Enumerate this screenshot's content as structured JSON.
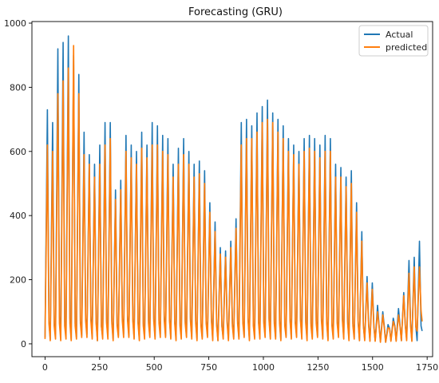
{
  "chart_data": {
    "type": "line",
    "title": "Forecasting (GRU)",
    "xlabel": "",
    "ylabel": "",
    "xlim": [
      -60,
      1775
    ],
    "ylim": [
      -40,
      1005
    ],
    "xticks": [
      0,
      250,
      500,
      750,
      1000,
      1250,
      1500,
      1750
    ],
    "yticks": [
      0,
      200,
      400,
      600,
      800,
      1000
    ],
    "grid": false,
    "legend_position": "top-right",
    "period": 24,
    "trough": 8,
    "series": [
      {
        "name": "Actual",
        "color": "#1f77b4",
        "x": [
          0,
          24,
          48,
          72,
          96,
          120,
          144,
          168,
          192,
          216,
          240,
          264,
          288,
          312,
          336,
          360,
          384,
          408,
          432,
          456,
          480,
          504,
          528,
          552,
          576,
          600,
          624,
          648,
          672,
          696,
          720,
          744,
          768,
          792,
          816,
          840,
          864,
          888,
          912,
          936,
          960,
          984,
          1008,
          1032,
          1056,
          1080,
          1104,
          1128,
          1152,
          1176,
          1200,
          1224,
          1248,
          1272,
          1296,
          1320,
          1344,
          1368,
          1392,
          1416,
          1440,
          1464,
          1488,
          1512,
          1536,
          1560,
          1584,
          1608,
          1632,
          1656,
          1680,
          1704
        ],
        "values": [
          730,
          690,
          920,
          940,
          960,
          900,
          840,
          660,
          590,
          560,
          620,
          690,
          690,
          480,
          510,
          650,
          620,
          600,
          660,
          620,
          690,
          680,
          650,
          640,
          560,
          610,
          640,
          600,
          560,
          570,
          540,
          440,
          380,
          300,
          290,
          320,
          390,
          690,
          700,
          680,
          720,
          740,
          760,
          720,
          700,
          680,
          640,
          620,
          600,
          640,
          650,
          640,
          620,
          650,
          640,
          560,
          550,
          520,
          540,
          440,
          350,
          210,
          190,
          120,
          100,
          60,
          80,
          110,
          160,
          260,
          270,
          320
        ],
        "valley_values": [
          20,
          15,
          30,
          20,
          25,
          15,
          20,
          25,
          30,
          20,
          10,
          20,
          20,
          15,
          25,
          30,
          25,
          20,
          15,
          20,
          25,
          20,
          30,
          25,
          20,
          15,
          20,
          25,
          20,
          15,
          20,
          25,
          15,
          10,
          20,
          15,
          20,
          20,
          25,
          15,
          20,
          20,
          25,
          20,
          20,
          15,
          25,
          20,
          25,
          20,
          15,
          20,
          25,
          20,
          15,
          20,
          25,
          20,
          15,
          20,
          10,
          15,
          10,
          10,
          8,
          5,
          10,
          10,
          10,
          15,
          10,
          10
        ]
      },
      {
        "name": "predicted",
        "color": "#ff7f0e",
        "x": [
          0,
          24,
          48,
          72,
          96,
          120,
          144,
          168,
          192,
          216,
          240,
          264,
          288,
          312,
          336,
          360,
          384,
          408,
          432,
          456,
          480,
          504,
          528,
          552,
          576,
          600,
          624,
          648,
          672,
          696,
          720,
          744,
          768,
          792,
          816,
          840,
          864,
          888,
          912,
          936,
          960,
          984,
          1008,
          1032,
          1056,
          1080,
          1104,
          1128,
          1152,
          1176,
          1200,
          1224,
          1248,
          1272,
          1296,
          1320,
          1344,
          1368,
          1392,
          1416,
          1440,
          1464,
          1488,
          1512,
          1536,
          1560,
          1584,
          1608,
          1632,
          1656,
          1680,
          1704
        ],
        "values": [
          620,
          600,
          780,
          820,
          860,
          930,
          780,
          590,
          560,
          520,
          560,
          620,
          640,
          450,
          480,
          600,
          580,
          560,
          610,
          580,
          620,
          620,
          600,
          590,
          520,
          560,
          590,
          560,
          520,
          530,
          500,
          410,
          350,
          280,
          270,
          300,
          360,
          620,
          640,
          640,
          660,
          690,
          700,
          690,
          660,
          640,
          600,
          590,
          560,
          600,
          610,
          600,
          580,
          600,
          600,
          520,
          520,
          490,
          500,
          410,
          320,
          190,
          170,
          100,
          90,
          50,
          70,
          90,
          150,
          220,
          240,
          240
        ],
        "valley_values": [
          15,
          10,
          15,
          10,
          15,
          10,
          15,
          20,
          20,
          15,
          10,
          15,
          15,
          10,
          20,
          20,
          20,
          15,
          10,
          15,
          20,
          15,
          20,
          20,
          15,
          10,
          15,
          20,
          15,
          10,
          15,
          20,
          10,
          10,
          15,
          10,
          15,
          15,
          20,
          10,
          15,
          15,
          20,
          15,
          15,
          10,
          20,
          15,
          20,
          15,
          10,
          15,
          20,
          15,
          10,
          15,
          20,
          15,
          10,
          15,
          10,
          10,
          8,
          8,
          5,
          5,
          8,
          8,
          10,
          10,
          8,
          40
        ]
      }
    ]
  }
}
